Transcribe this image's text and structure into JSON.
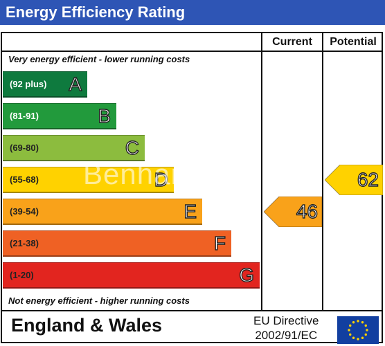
{
  "header": {
    "title": "Energy Efficiency Rating",
    "bg_color": "#2e55b5"
  },
  "columns": {
    "current": "Current",
    "potential": "Potential"
  },
  "notes": {
    "top": "Very energy efficient - lower running costs",
    "bottom": "Not energy efficient - higher running costs"
  },
  "chart_data": {
    "type": "bar",
    "categories": [
      "A",
      "B",
      "C",
      "D",
      "E",
      "F",
      "G"
    ],
    "ranges": [
      "(92 plus)",
      "(81-91)",
      "(69-80)",
      "(55-68)",
      "(39-54)",
      "(21-38)",
      "(1-20)"
    ],
    "colors": [
      "#0e7a3e",
      "#229a3c",
      "#8cbc3e",
      "#ffd200",
      "#f9a21a",
      "#ef6124",
      "#e2251f"
    ],
    "range_text_colors": [
      "#ffffff",
      "#ffffff",
      "#222222",
      "#222222",
      "#222222",
      "#222222",
      "#222222"
    ],
    "current": {
      "value": 46,
      "band": "E"
    },
    "potential": {
      "value": 62,
      "band": "D"
    }
  },
  "watermark": "Benham",
  "footer": {
    "region": "England & Wales",
    "directive_line1": "EU Directive",
    "directive_line2": "2002/91/EC",
    "flag_color": "#123fa0",
    "star_color": "#ffd200"
  }
}
